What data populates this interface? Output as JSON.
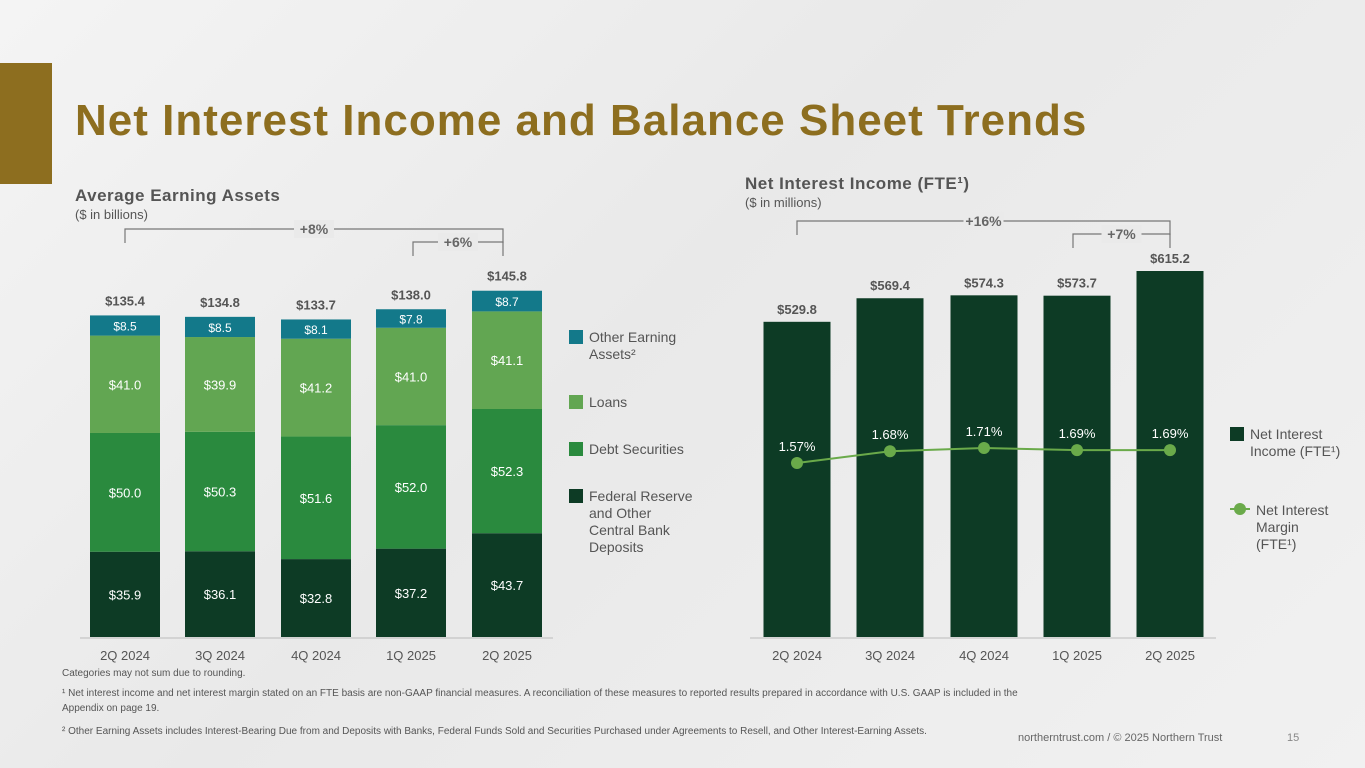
{
  "page": {
    "title": "Net Interest Income and Balance Sheet Trends",
    "footer": "northerntrust.com / © 2025 Northern Trust",
    "page_number": "15",
    "footnotes": [
      "Categories may not sum due to rounding.",
      "¹ Net interest income and net interest margin stated on an FTE basis are non-GAAP financial measures. A reconciliation of these measures to reported results prepared in accordance with U.S. GAAP is included in the Appendix on page 19.",
      "² Other Earning Assets includes Interest-Bearing Due from and Deposits with Banks, Federal Funds Sold and Securities Purchased under Agreements to Resell, and Other Interest-Earning Assets."
    ]
  },
  "chart_data": [
    {
      "type": "bar",
      "stacked": true,
      "title": "Average Earning Assets",
      "subtitle": "($ in billions)",
      "categories": [
        "2Q 2024",
        "3Q 2024",
        "4Q 2024",
        "1Q 2025",
        "2Q 2025"
      ],
      "series": [
        {
          "name": "Federal Reserve and Other Central Bank Deposits",
          "color": "#0d3b25",
          "values": [
            35.9,
            36.1,
            32.8,
            37.2,
            43.7
          ],
          "labels": [
            "$35.9",
            "$36.1",
            "$32.8",
            "$37.2",
            "$43.7"
          ]
        },
        {
          "name": "Debt Securities",
          "color": "#2a8a3e",
          "values": [
            50.0,
            50.3,
            51.6,
            52.0,
            52.3
          ],
          "labels": [
            "$50.0",
            "$50.3",
            "$51.6",
            "$52.0",
            "$52.3"
          ]
        },
        {
          "name": "Loans",
          "color": "#62a652",
          "values": [
            41.0,
            39.9,
            41.2,
            41.0,
            41.1
          ],
          "labels": [
            "$41.0",
            "$39.9",
            "$41.2",
            "$41.0",
            "$41.1"
          ]
        },
        {
          "name": "Other Earning Assets²",
          "color": "#13798a",
          "values": [
            8.5,
            8.5,
            8.1,
            7.8,
            8.7
          ],
          "labels": [
            "$8.5",
            "$8.5",
            "$8.1",
            "$7.8",
            "$8.7"
          ]
        }
      ],
      "totals": [
        135.4,
        134.8,
        133.7,
        138.0,
        145.8
      ],
      "total_labels": [
        "$135.4",
        "$134.8",
        "$133.7",
        "$138.0",
        "$145.8"
      ],
      "annotations": [
        {
          "label": "+8%",
          "from": "2Q 2024",
          "to": "2Q 2025"
        },
        {
          "label": "+6%",
          "from": "1Q 2025",
          "to": "2Q 2025"
        }
      ],
      "legend": {
        "placement": "right",
        "entries": [
          "Other Earning Assets²",
          "Loans",
          "Debt Securities",
          "Federal Reserve and Other Central Bank Deposits"
        ]
      },
      "grid": false
    },
    {
      "type": "bar",
      "title": "Net Interest Income (FTE¹)",
      "subtitle": "($ in millions)",
      "categories": [
        "2Q 2024",
        "3Q 2024",
        "4Q 2024",
        "1Q 2025",
        "2Q 2025"
      ],
      "series": [
        {
          "name": "Net Interest Income (FTE¹)",
          "type": "bar",
          "color": "#0d3b25",
          "values": [
            529.8,
            569.4,
            574.3,
            573.7,
            615.2
          ],
          "labels": [
            "$529.8",
            "$569.4",
            "$574.3",
            "$573.7",
            "$615.2"
          ]
        },
        {
          "name": "Net Interest Margin (FTE¹)",
          "type": "line",
          "color": "#6aaa4a",
          "values": [
            1.57,
            1.68,
            1.71,
            1.69,
            1.69
          ],
          "labels": [
            "1.57%",
            "1.68%",
            "1.71%",
            "1.69%",
            "1.69%"
          ]
        }
      ],
      "annotations": [
        {
          "label": "+16%",
          "from": "2Q 2024",
          "to": "2Q 2025"
        },
        {
          "label": "+7%",
          "from": "1Q 2025",
          "to": "2Q 2025"
        }
      ],
      "legend": {
        "placement": "right",
        "entries": [
          "Net Interest Income (FTE¹)",
          "Net Interest Margin (FTE¹)"
        ]
      },
      "grid": false
    }
  ]
}
